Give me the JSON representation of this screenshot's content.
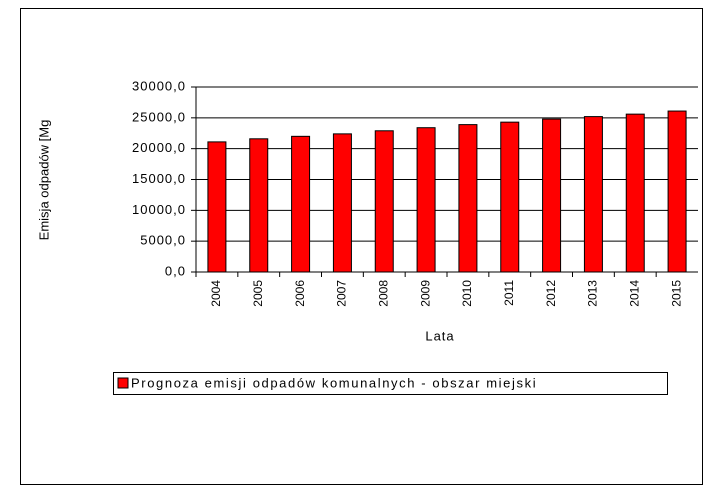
{
  "chart_data": {
    "type": "bar",
    "categories": [
      "2004",
      "2005",
      "2006",
      "2007",
      "2008",
      "2009",
      "2010",
      "2011",
      "2012",
      "2013",
      "2014",
      "2015"
    ],
    "series": [
      {
        "name": "Prognoza emisji odpadów komunalnych - obszar miejski",
        "color": "#ff0000",
        "values": [
          21100,
          21600,
          22000,
          22400,
          22900,
          23400,
          23900,
          24300,
          24800,
          25200,
          25600,
          26100
        ]
      }
    ],
    "x_label": "Lata",
    "y_label": "Emisja odpadów [Mg",
    "ylim": [
      0,
      30000
    ],
    "yticks": [
      {
        "value": 0,
        "label": "0,0"
      },
      {
        "value": 5000,
        "label": "5000,0"
      },
      {
        "value": 10000,
        "label": "10000,0"
      },
      {
        "value": 15000,
        "label": "15000,0"
      },
      {
        "value": 20000,
        "label": "20000,0"
      },
      {
        "value": 25000,
        "label": "25000,0"
      },
      {
        "value": 30000,
        "label": "30000,0"
      }
    ],
    "grid": true,
    "legend": "bottom"
  }
}
